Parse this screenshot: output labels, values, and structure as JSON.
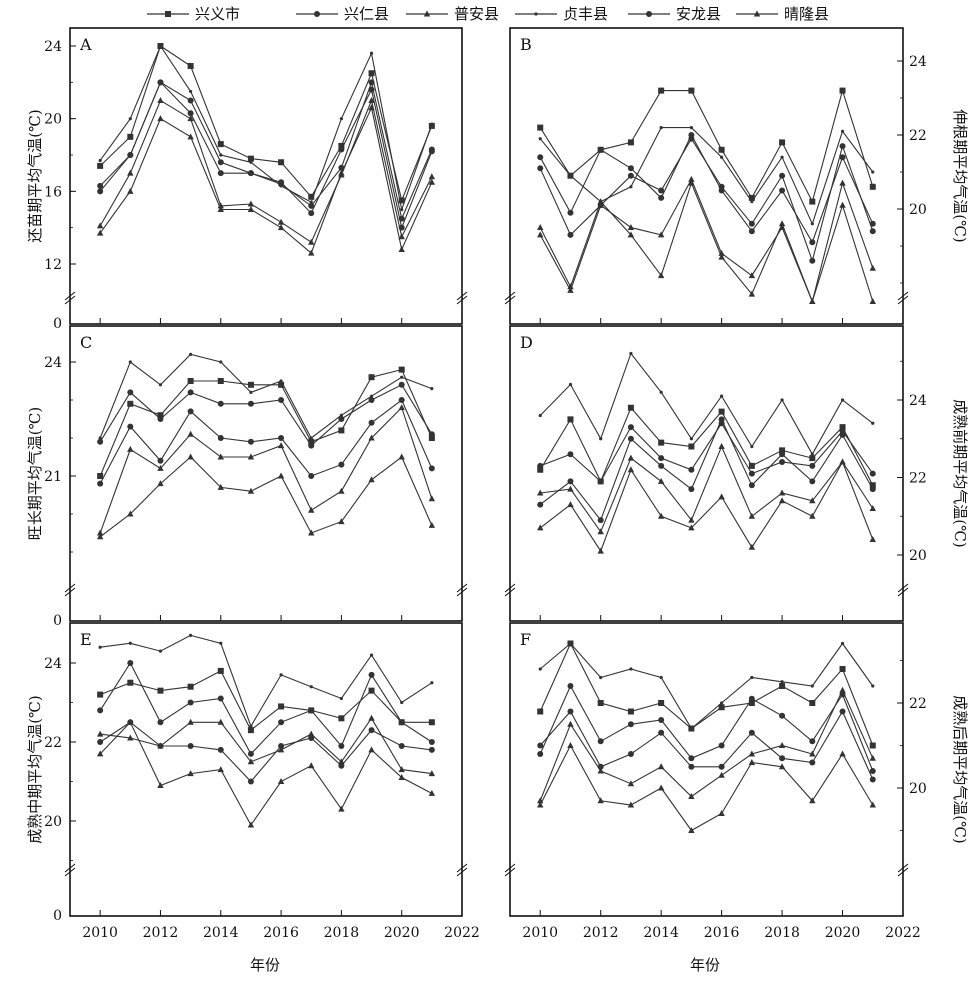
{
  "legend": [
    "兴义市",
    "兴仁县",
    "普安县",
    "贞丰县",
    "安龙县",
    "晴隆县"
  ],
  "xlabel": "年份",
  "x_ticks": [
    2010,
    2012,
    2014,
    2016,
    2018,
    2020,
    2022
  ],
  "chart_data": [
    {
      "panel": "A",
      "type": "line",
      "ylabel": "还苗期平均气温(℃)",
      "axis_side": "left",
      "ylim": [
        0,
        25
      ],
      "yticks": [
        0,
        12,
        16,
        20,
        24
      ],
      "axis_break": true,
      "x": [
        2010,
        2011,
        2012,
        2013,
        2014,
        2015,
        2016,
        2017,
        2018,
        2019,
        2020,
        2021
      ],
      "series": [
        {
          "name": "兴义市",
          "values": [
            17.4,
            19.0,
            24.0,
            22.9,
            18.6,
            17.8,
            17.6,
            15.7,
            18.5,
            22.5,
            15.5,
            19.6
          ]
        },
        {
          "name": "兴仁县",
          "values": [
            16.3,
            18.0,
            22.0,
            21.0,
            17.6,
            17.0,
            16.4,
            15.2,
            17.3,
            22.0,
            14.5,
            18.3
          ]
        },
        {
          "name": "普安县",
          "values": [
            14.1,
            17.0,
            21.0,
            20.0,
            15.2,
            15.3,
            14.3,
            13.2,
            16.9,
            21.0,
            13.5,
            16.8
          ]
        },
        {
          "name": "贞丰县",
          "values": [
            17.7,
            20.0,
            24.0,
            21.5,
            18.0,
            17.6,
            16.3,
            15.4,
            20.0,
            23.6,
            15.0,
            19.7
          ]
        },
        {
          "name": "安龙县",
          "values": [
            16.0,
            18.0,
            22.0,
            20.3,
            17.0,
            17.0,
            16.5,
            14.8,
            18.3,
            21.6,
            14.0,
            18.2
          ]
        },
        {
          "name": "晴隆县",
          "values": [
            13.7,
            16.0,
            20.0,
            19.0,
            15.0,
            15.0,
            14.0,
            12.6,
            17.0,
            20.6,
            12.8,
            16.5
          ]
        }
      ]
    },
    {
      "panel": "B",
      "type": "line",
      "ylabel": "伸根期平均气温(℃)",
      "axis_side": "right",
      "ylim": [
        16,
        25
      ],
      "yticks": [
        20,
        22,
        24
      ],
      "axis_break": true,
      "x": [
        2010,
        2011,
        2012,
        2013,
        2014,
        2015,
        2016,
        2017,
        2018,
        2019,
        2020,
        2021
      ],
      "series": [
        {
          "name": "兴义市",
          "values": [
            22.2,
            20.9,
            21.6,
            21.8,
            23.2,
            23.2,
            21.6,
            20.3,
            21.8,
            20.2,
            23.2,
            20.6
          ]
        },
        {
          "name": "兴仁县",
          "values": [
            21.1,
            19.3,
            20.1,
            20.9,
            20.5,
            21.9,
            20.6,
            19.6,
            20.9,
            18.6,
            21.7,
            19.4
          ]
        },
        {
          "name": "普安县",
          "values": [
            19.5,
            17.9,
            20.2,
            19.3,
            18.2,
            20.7,
            18.7,
            17.7,
            19.6,
            17.5,
            20.1,
            17.5
          ]
        },
        {
          "name": "贞丰县",
          "values": [
            21.9,
            20.9,
            20.2,
            20.6,
            22.2,
            22.2,
            21.4,
            20.2,
            21.4,
            19.6,
            22.1,
            21.0
          ]
        },
        {
          "name": "安龙县",
          "values": [
            21.4,
            19.9,
            21.6,
            21.1,
            20.3,
            22.0,
            20.5,
            19.4,
            20.5,
            19.1,
            21.4,
            19.6
          ]
        },
        {
          "name": "晴隆县",
          "values": [
            19.3,
            17.8,
            20.1,
            19.5,
            19.3,
            20.8,
            18.8,
            18.2,
            19.5,
            17.5,
            20.7,
            18.4
          ]
        }
      ]
    },
    {
      "panel": "C",
      "type": "line",
      "ylabel": "旺长期平均气温(℃)",
      "axis_side": "left",
      "ylim": [
        0,
        25
      ],
      "yticks": [
        0,
        21,
        24
      ],
      "axis_break": true,
      "x": [
        2010,
        2011,
        2012,
        2013,
        2014,
        2015,
        2016,
        2017,
        2018,
        2019,
        2020,
        2021
      ],
      "series": [
        {
          "name": "兴义市",
          "values": [
            21.0,
            22.9,
            22.6,
            23.5,
            23.5,
            23.4,
            23.4,
            21.9,
            22.2,
            23.6,
            23.8,
            22.0
          ]
        },
        {
          "name": "兴仁县",
          "values": [
            20.8,
            22.3,
            21.4,
            22.7,
            22.0,
            21.9,
            22.0,
            21.0,
            21.3,
            22.4,
            23.0,
            21.2
          ]
        },
        {
          "name": "普安县",
          "values": [
            19.4,
            20.0,
            20.8,
            21.5,
            20.7,
            20.6,
            21.0,
            19.5,
            19.8,
            20.9,
            21.5,
            19.7
          ]
        },
        {
          "name": "贞丰县",
          "values": [
            22.0,
            24.0,
            23.4,
            24.2,
            24.0,
            23.2,
            23.5,
            22.0,
            22.6,
            23.1,
            23.6,
            23.3
          ]
        },
        {
          "name": "安龙县",
          "values": [
            21.9,
            23.2,
            22.5,
            23.2,
            22.9,
            22.9,
            23.0,
            21.8,
            22.5,
            23.0,
            23.4,
            22.1
          ]
        },
        {
          "name": "晴隆县",
          "values": [
            19.5,
            21.7,
            21.2,
            22.1,
            21.5,
            21.5,
            21.8,
            20.1,
            20.6,
            22.0,
            22.8,
            20.4
          ]
        }
      ]
    },
    {
      "panel": "D",
      "type": "line",
      "ylabel": "成熟前期平均气温(℃)",
      "axis_side": "right",
      "ylim": [
        16,
        26
      ],
      "yticks": [
        20,
        22,
        24
      ],
      "axis_break": true,
      "x": [
        2010,
        2011,
        2012,
        2013,
        2014,
        2015,
        2016,
        2017,
        2018,
        2019,
        2020,
        2021
      ],
      "series": [
        {
          "name": "兴义市",
          "values": [
            22.2,
            23.5,
            21.9,
            23.8,
            22.9,
            22.8,
            23.7,
            22.3,
            22.7,
            22.5,
            23.3,
            21.8
          ]
        },
        {
          "name": "兴仁县",
          "values": [
            21.3,
            21.9,
            20.9,
            23.0,
            22.3,
            21.7,
            23.5,
            21.8,
            22.6,
            21.9,
            23.1,
            21.7
          ]
        },
        {
          "name": "普安县",
          "values": [
            20.7,
            21.3,
            20.1,
            22.2,
            21.0,
            20.7,
            21.5,
            20.2,
            21.4,
            21.0,
            22.4,
            20.4
          ]
        },
        {
          "name": "贞丰县",
          "values": [
            23.6,
            24.4,
            23.0,
            25.2,
            24.2,
            23.0,
            24.1,
            22.8,
            24.0,
            22.6,
            24.0,
            23.4
          ]
        },
        {
          "name": "安龙县",
          "values": [
            22.3,
            22.6,
            21.9,
            23.3,
            22.5,
            22.2,
            23.4,
            22.1,
            22.4,
            22.3,
            23.2,
            22.1
          ]
        },
        {
          "name": "晴隆县",
          "values": [
            21.6,
            21.7,
            20.6,
            22.5,
            21.9,
            20.9,
            22.8,
            21.0,
            21.6,
            21.4,
            22.4,
            21.2
          ]
        }
      ]
    },
    {
      "panel": "E",
      "type": "line",
      "ylabel": "成熟中期平均气温(℃)",
      "axis_side": "left",
      "ylim": [
        0,
        25
      ],
      "yticks": [
        0,
        20,
        22,
        24
      ],
      "axis_break": true,
      "x": [
        2010,
        2011,
        2012,
        2013,
        2014,
        2015,
        2016,
        2017,
        2018,
        2019,
        2020,
        2021
      ],
      "series": [
        {
          "name": "兴义市",
          "values": [
            23.2,
            23.5,
            23.3,
            23.4,
            23.8,
            22.3,
            22.9,
            22.8,
            22.6,
            23.3,
            22.5,
            22.5
          ]
        },
        {
          "name": "兴仁县",
          "values": [
            22.0,
            22.5,
            21.9,
            21.9,
            21.8,
            21.0,
            21.9,
            22.1,
            21.4,
            22.3,
            21.9,
            21.8
          ]
        },
        {
          "name": "普安县",
          "values": [
            21.7,
            22.5,
            20.9,
            21.2,
            21.3,
            19.9,
            21.0,
            21.4,
            20.3,
            21.8,
            21.1,
            20.7
          ]
        },
        {
          "name": "贞丰县",
          "values": [
            24.4,
            24.5,
            24.3,
            24.7,
            24.5,
            22.4,
            23.7,
            23.4,
            23.1,
            24.2,
            23.0,
            23.5
          ]
        },
        {
          "name": "安龙县",
          "values": [
            22.8,
            24.0,
            22.5,
            23.0,
            23.1,
            21.7,
            22.5,
            22.8,
            21.9,
            23.7,
            22.5,
            22.0
          ]
        },
        {
          "name": "晴隆县",
          "values": [
            22.2,
            22.1,
            21.9,
            22.5,
            22.5,
            21.5,
            21.8,
            22.2,
            21.5,
            22.6,
            21.3,
            21.2
          ]
        }
      ]
    },
    {
      "panel": "F",
      "type": "line",
      "ylabel": "成熟后期平均气温(℃)",
      "axis_side": "right",
      "ylim": [
        16,
        24
      ],
      "yticks": [
        20,
        22
      ],
      "axis_break": true,
      "x": [
        2010,
        2011,
        2012,
        2013,
        2014,
        2015,
        2016,
        2017,
        2018,
        2019,
        2020,
        2021
      ],
      "series": [
        {
          "name": "兴义市",
          "values": [
            21.8,
            23.4,
            22.0,
            21.8,
            22.0,
            21.4,
            21.9,
            22.0,
            22.4,
            22.0,
            22.8,
            21.0
          ]
        },
        {
          "name": "兴仁县",
          "values": [
            20.8,
            22.4,
            21.1,
            21.5,
            21.6,
            20.7,
            21.0,
            22.1,
            21.7,
            21.1,
            22.2,
            20.4
          ]
        },
        {
          "name": "普安县",
          "values": [
            19.6,
            21.0,
            19.7,
            19.6,
            20.0,
            19.0,
            19.4,
            20.6,
            20.5,
            19.7,
            20.8,
            19.6
          ]
        },
        {
          "name": "贞丰县",
          "values": [
            22.8,
            23.4,
            22.6,
            22.8,
            22.6,
            21.4,
            22.0,
            22.6,
            22.5,
            22.4,
            23.4,
            22.4
          ]
        },
        {
          "name": "安龙县",
          "values": [
            21.0,
            21.8,
            20.5,
            20.8,
            21.3,
            20.5,
            20.5,
            21.3,
            20.7,
            20.6,
            21.8,
            20.2
          ]
        },
        {
          "name": "晴隆县",
          "values": [
            19.7,
            21.5,
            20.4,
            20.1,
            20.5,
            19.8,
            20.3,
            20.8,
            21.0,
            20.8,
            22.3,
            20.7
          ]
        }
      ]
    }
  ]
}
